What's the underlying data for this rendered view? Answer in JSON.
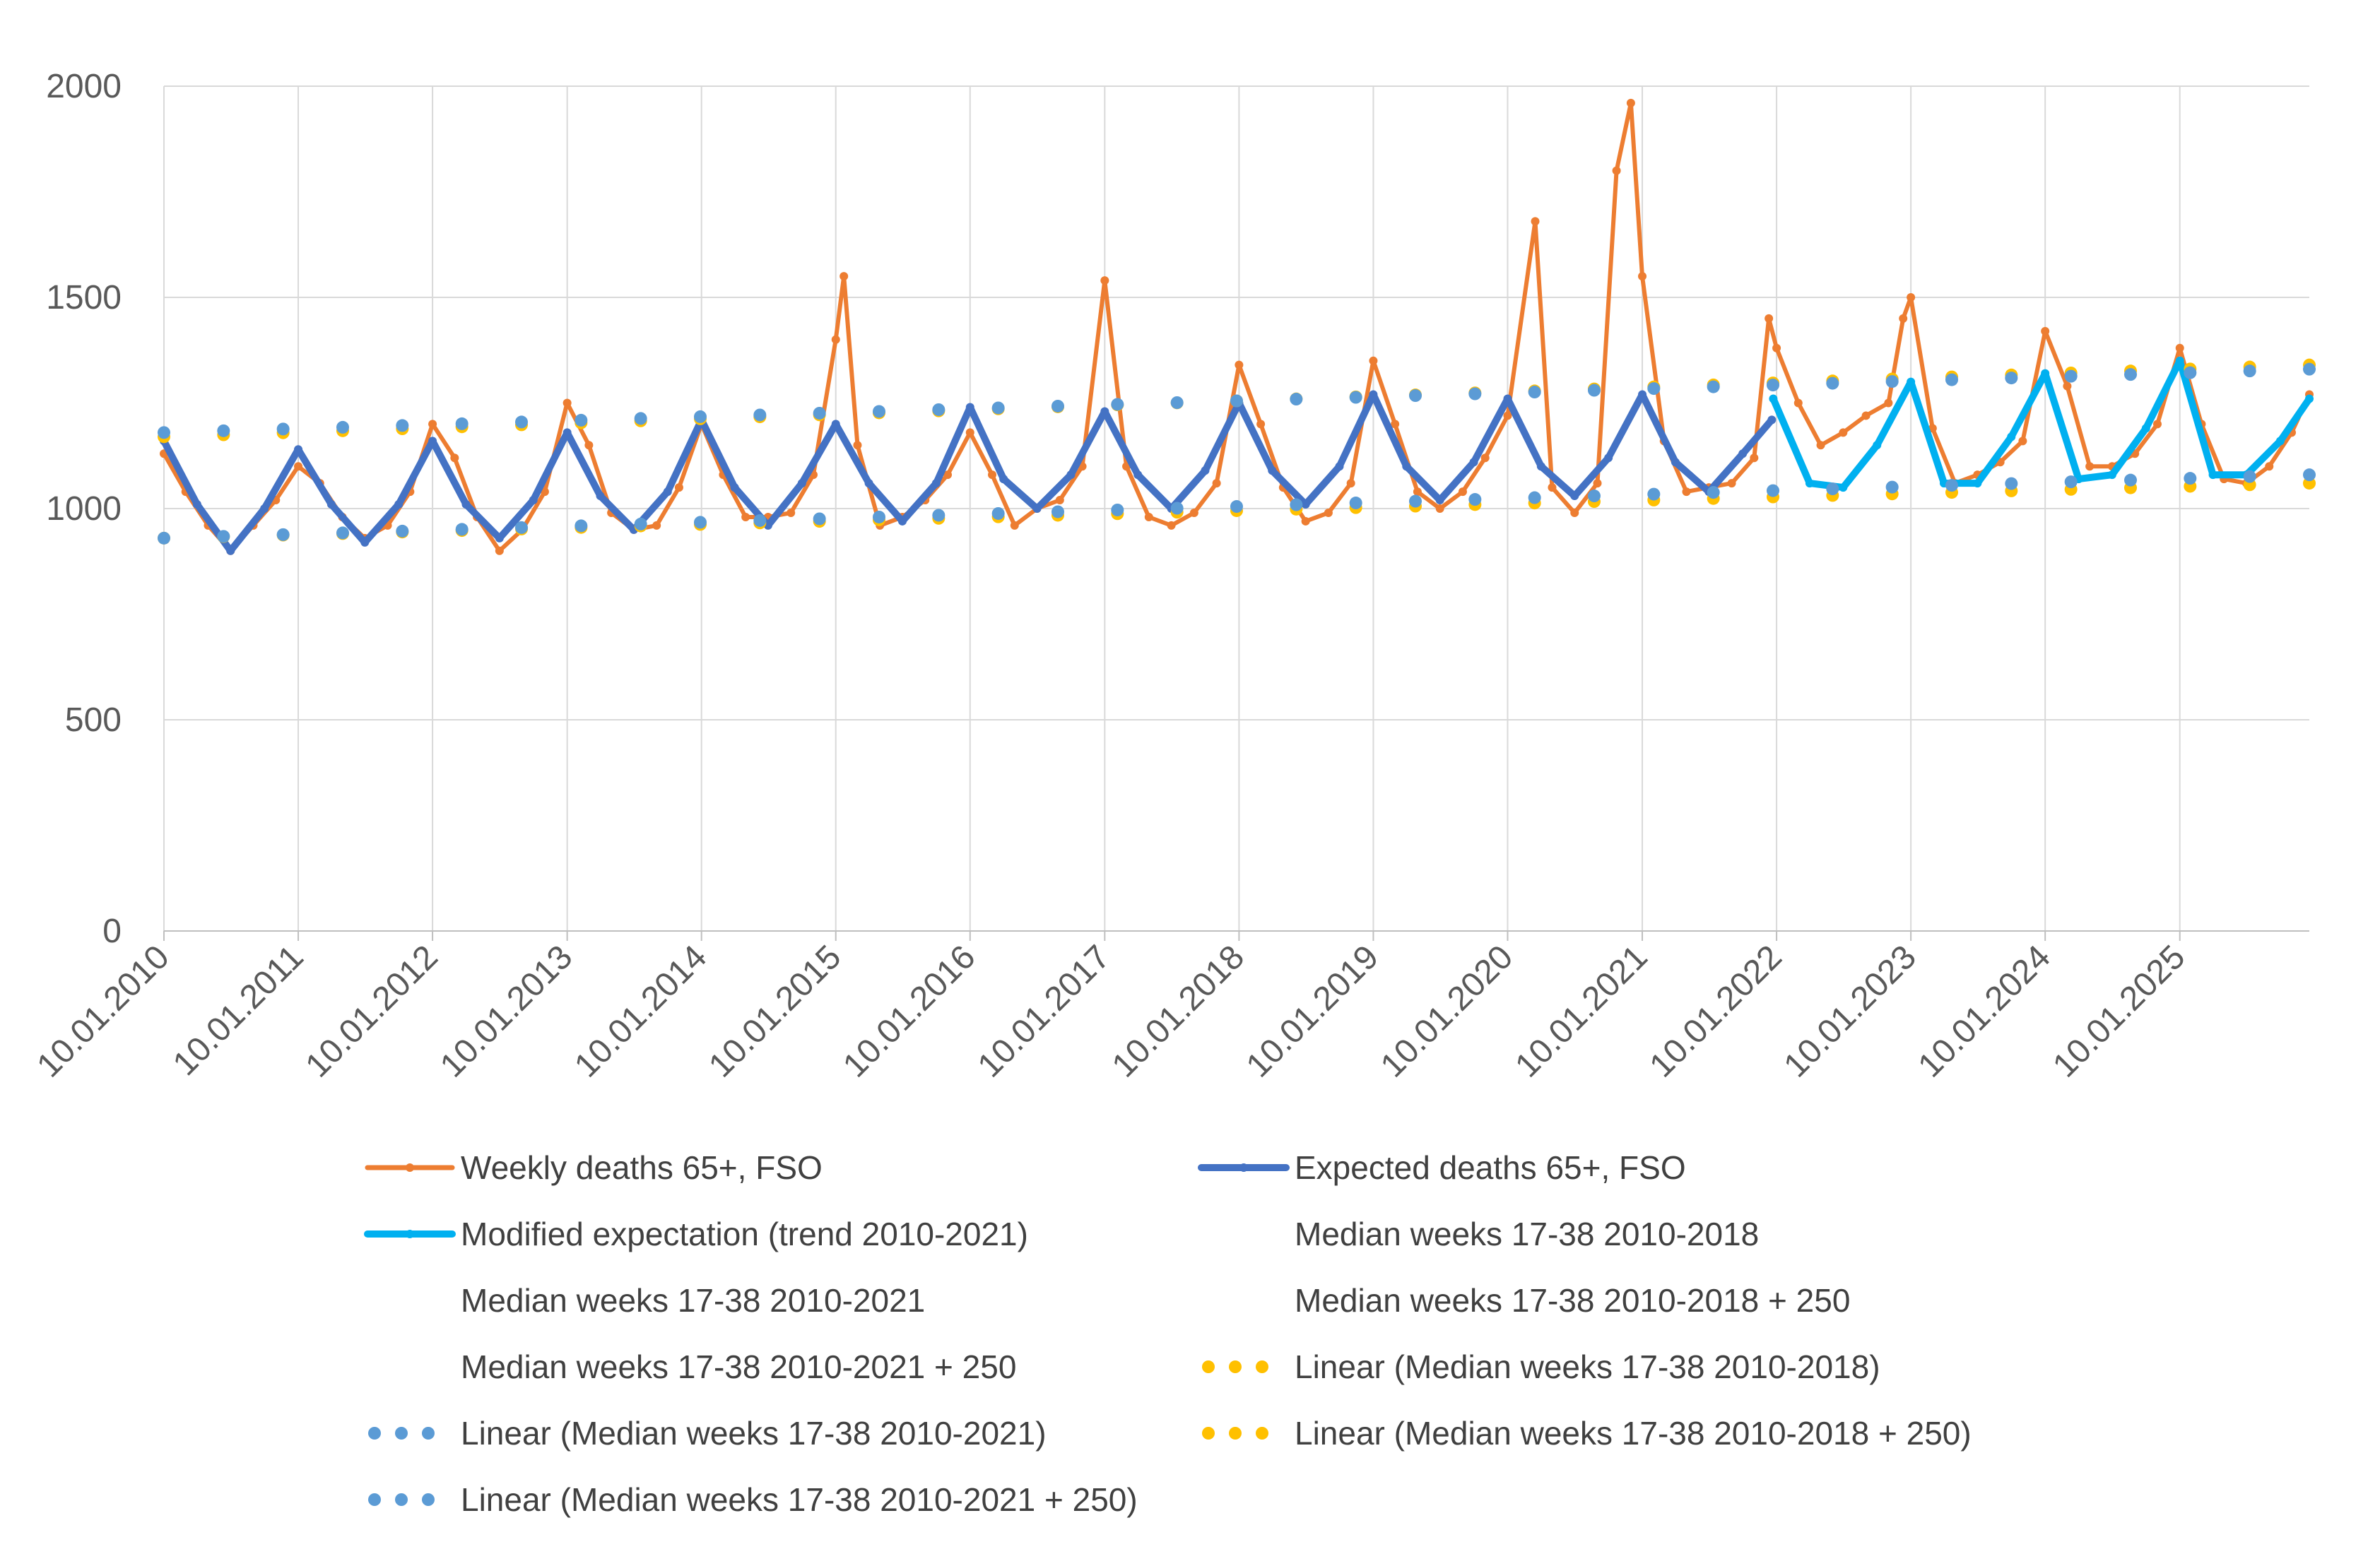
{
  "chart_data": {
    "type": "line",
    "title": "",
    "xlabel": "",
    "ylabel": "",
    "ylim": [
      0,
      2000
    ],
    "y_ticks": [
      0,
      500,
      1000,
      1500,
      2000
    ],
    "x_range": [
      "2010-01-10",
      "2025-12-28"
    ],
    "x_tick_labels": [
      "10.01.2010",
      "10.01.2011",
      "10.01.2012",
      "10.01.2013",
      "10.01.2014",
      "10.01.2015",
      "10.01.2016",
      "10.01.2017",
      "10.01.2018",
      "10.01.2019",
      "10.01.2020",
      "10.01.2021",
      "10.01.2022",
      "10.01.2023",
      "10.01.2024",
      "10.01.2025"
    ],
    "grid": "vertical gridlines at x ticks, horizontal gridlines at y ticks",
    "legend_position": "bottom",
    "series_colors": {
      "weekly": "#ED7D31",
      "expected": "#4472C4",
      "modified": "#00B0F0",
      "trend_2018": "#FFC000",
      "trend_2021": "#5B9BD5"
    },
    "series": [
      {
        "name": "Weekly deaths 65+, FSO",
        "style": "line with small markers",
        "color": "#ED7D31",
        "x": [
          "2010-01-10",
          "2010-03-10",
          "2010-05-10",
          "2010-07-10",
          "2010-09-10",
          "2010-11-10",
          "2011-01-10",
          "2011-03-10",
          "2011-05-10",
          "2011-07-10",
          "2011-09-10",
          "2011-11-10",
          "2012-01-10",
          "2012-03-10",
          "2012-05-10",
          "2012-07-10",
          "2012-09-10",
          "2012-11-10",
          "2013-01-10",
          "2013-03-10",
          "2013-05-10",
          "2013-07-10",
          "2013-09-10",
          "2013-11-10",
          "2014-01-10",
          "2014-03-10",
          "2014-05-10",
          "2014-07-10",
          "2014-09-10",
          "2014-11-10",
          "2015-01-10",
          "2015-02-01",
          "2015-03-10",
          "2015-05-10",
          "2015-07-10",
          "2015-09-10",
          "2015-11-10",
          "2016-01-10",
          "2016-03-10",
          "2016-05-10",
          "2016-07-10",
          "2016-09-10",
          "2016-11-10",
          "2017-01-10",
          "2017-03-10",
          "2017-05-10",
          "2017-07-10",
          "2017-09-10",
          "2017-11-10",
          "2018-01-10",
          "2018-03-10",
          "2018-05-10",
          "2018-07-10",
          "2018-09-10",
          "2018-11-10",
          "2019-01-10",
          "2019-03-10",
          "2019-05-10",
          "2019-07-10",
          "2019-09-10",
          "2019-11-10",
          "2020-01-10",
          "2020-03-25",
          "2020-05-10",
          "2020-07-10",
          "2020-09-10",
          "2020-11-01",
          "2020-12-10",
          "2021-01-10",
          "2021-03-10",
          "2021-05-10",
          "2021-07-10",
          "2021-09-10",
          "2021-11-10",
          "2021-12-20",
          "2022-01-10",
          "2022-03-10",
          "2022-05-10",
          "2022-07-10",
          "2022-09-10",
          "2022-11-10",
          "2022-12-20",
          "2023-01-10",
          "2023-03-10",
          "2023-05-10",
          "2023-07-10",
          "2023-09-10",
          "2023-11-10",
          "2024-01-10",
          "2024-03-10",
          "2024-05-10",
          "2024-07-10",
          "2024-09-10",
          "2024-11-10",
          "2025-01-10",
          "2025-03-10",
          "2025-05-10",
          "2025-07-10",
          "2025-09-10",
          "2025-11-10",
          "2025-12-28"
        ],
        "values": [
          1130,
          1040,
          960,
          900,
          960,
          1020,
          1100,
          1060,
          980,
          930,
          960,
          1040,
          1200,
          1120,
          980,
          900,
          950,
          1040,
          1250,
          1150,
          990,
          950,
          960,
          1050,
          1200,
          1080,
          980,
          980,
          990,
          1080,
          1400,
          1550,
          1150,
          960,
          980,
          1020,
          1080,
          1180,
          1080,
          960,
          1000,
          1020,
          1100,
          1540,
          1100,
          980,
          960,
          990,
          1060,
          1340,
          1200,
          1050,
          970,
          990,
          1060,
          1350,
          1200,
          1040,
          1000,
          1040,
          1120,
          1220,
          1680,
          1050,
          990,
          1060,
          1800,
          1960,
          1550,
          1160,
          1040,
          1050,
          1060,
          1120,
          1450,
          1380,
          1250,
          1150,
          1180,
          1220,
          1250,
          1450,
          1500,
          1190,
          1060,
          1080,
          1110,
          1160,
          1420,
          1290,
          1100,
          1100,
          1130,
          1200,
          1380,
          1200,
          1070,
          1060,
          1100,
          1180,
          1270
        ]
      },
      {
        "name": "Expected deaths 65+, FSO",
        "style": "thick line with small markers",
        "color": "#4472C4",
        "x": [
          "2010-01-10",
          "2010-04-10",
          "2010-07-10",
          "2010-10-10",
          "2011-01-10",
          "2011-04-10",
          "2011-07-10",
          "2011-10-10",
          "2012-01-10",
          "2012-04-10",
          "2012-07-10",
          "2012-10-10",
          "2013-01-10",
          "2013-04-10",
          "2013-07-10",
          "2013-10-10",
          "2014-01-10",
          "2014-04-10",
          "2014-07-10",
          "2014-10-10",
          "2015-01-10",
          "2015-04-10",
          "2015-07-10",
          "2015-10-10",
          "2016-01-10",
          "2016-04-10",
          "2016-07-10",
          "2016-10-10",
          "2017-01-10",
          "2017-04-10",
          "2017-07-10",
          "2017-10-10",
          "2018-01-10",
          "2018-04-10",
          "2018-07-10",
          "2018-10-10",
          "2019-01-10",
          "2019-04-10",
          "2019-07-10",
          "2019-10-10",
          "2020-01-10",
          "2020-04-10",
          "2020-07-10",
          "2020-10-10",
          "2021-01-10",
          "2021-04-10",
          "2021-07-10",
          "2021-10-10",
          "2021-12-28"
        ],
        "values": [
          1160,
          1010,
          900,
          1000,
          1140,
          1010,
          920,
          1010,
          1160,
          1010,
          930,
          1020,
          1180,
          1030,
          950,
          1040,
          1210,
          1050,
          960,
          1060,
          1200,
          1060,
          970,
          1060,
          1240,
          1070,
          1000,
          1080,
          1230,
          1080,
          1000,
          1090,
          1250,
          1090,
          1010,
          1100,
          1270,
          1100,
          1020,
          1110,
          1260,
          1100,
          1030,
          1120,
          1270,
          1110,
          1040,
          1130,
          1210
        ]
      },
      {
        "name": "Modified expectation (trend 2010-2021)",
        "style": "thick line with small markers",
        "color": "#00B0F0",
        "x": [
          "2022-01-01",
          "2022-04-10",
          "2022-07-10",
          "2022-10-10",
          "2023-01-10",
          "2023-04-10",
          "2023-07-10",
          "2023-10-10",
          "2024-01-10",
          "2024-04-10",
          "2024-07-10",
          "2024-10-10",
          "2025-01-10",
          "2025-04-10",
          "2025-07-10",
          "2025-10-10",
          "2025-12-28"
        ],
        "values": [
          1260,
          1060,
          1050,
          1150,
          1300,
          1060,
          1060,
          1170,
          1320,
          1070,
          1080,
          1190,
          1350,
          1080,
          1080,
          1160,
          1260
        ]
      },
      {
        "name": "Median weeks 17-38 2010-2018",
        "style": "none",
        "color": "",
        "x": [],
        "values": []
      },
      {
        "name": "Median weeks 17-38 2010-2021",
        "style": "none",
        "color": "",
        "x": [],
        "values": []
      },
      {
        "name": "Median weeks 17-38 2010-2018 + 250",
        "style": "none",
        "color": "",
        "x": [],
        "values": []
      },
      {
        "name": "Median weeks 17-38 2010-2021 + 250",
        "style": "none",
        "color": "",
        "x": [],
        "values": []
      },
      {
        "name": "Linear (Median weeks 17-38 2010-2018)",
        "style": "dotted trendline",
        "color": "#FFC000",
        "x": [
          "2010-01-10",
          "2025-12-28"
        ],
        "values": [
          930,
          1060
        ]
      },
      {
        "name": "Linear (Median weeks 17-38 2010-2021)",
        "style": "dotted trendline",
        "color": "#5B9BD5",
        "x": [
          "2010-01-10",
          "2025-12-28"
        ],
        "values": [
          930,
          1080
        ]
      },
      {
        "name": "Linear (Median weeks 17-38 2010-2018 + 250)",
        "style": "dotted trendline",
        "color": "#FFC000",
        "x": [
          "2010-01-10",
          "2025-12-28"
        ],
        "values": [
          1170,
          1340
        ]
      },
      {
        "name": "Linear (Median weeks 17-38 2010-2021 + 250)",
        "style": "dotted trendline",
        "color": "#5B9BD5",
        "x": [
          "2010-01-10",
          "2025-12-28"
        ],
        "values": [
          1180,
          1330
        ]
      }
    ]
  }
}
